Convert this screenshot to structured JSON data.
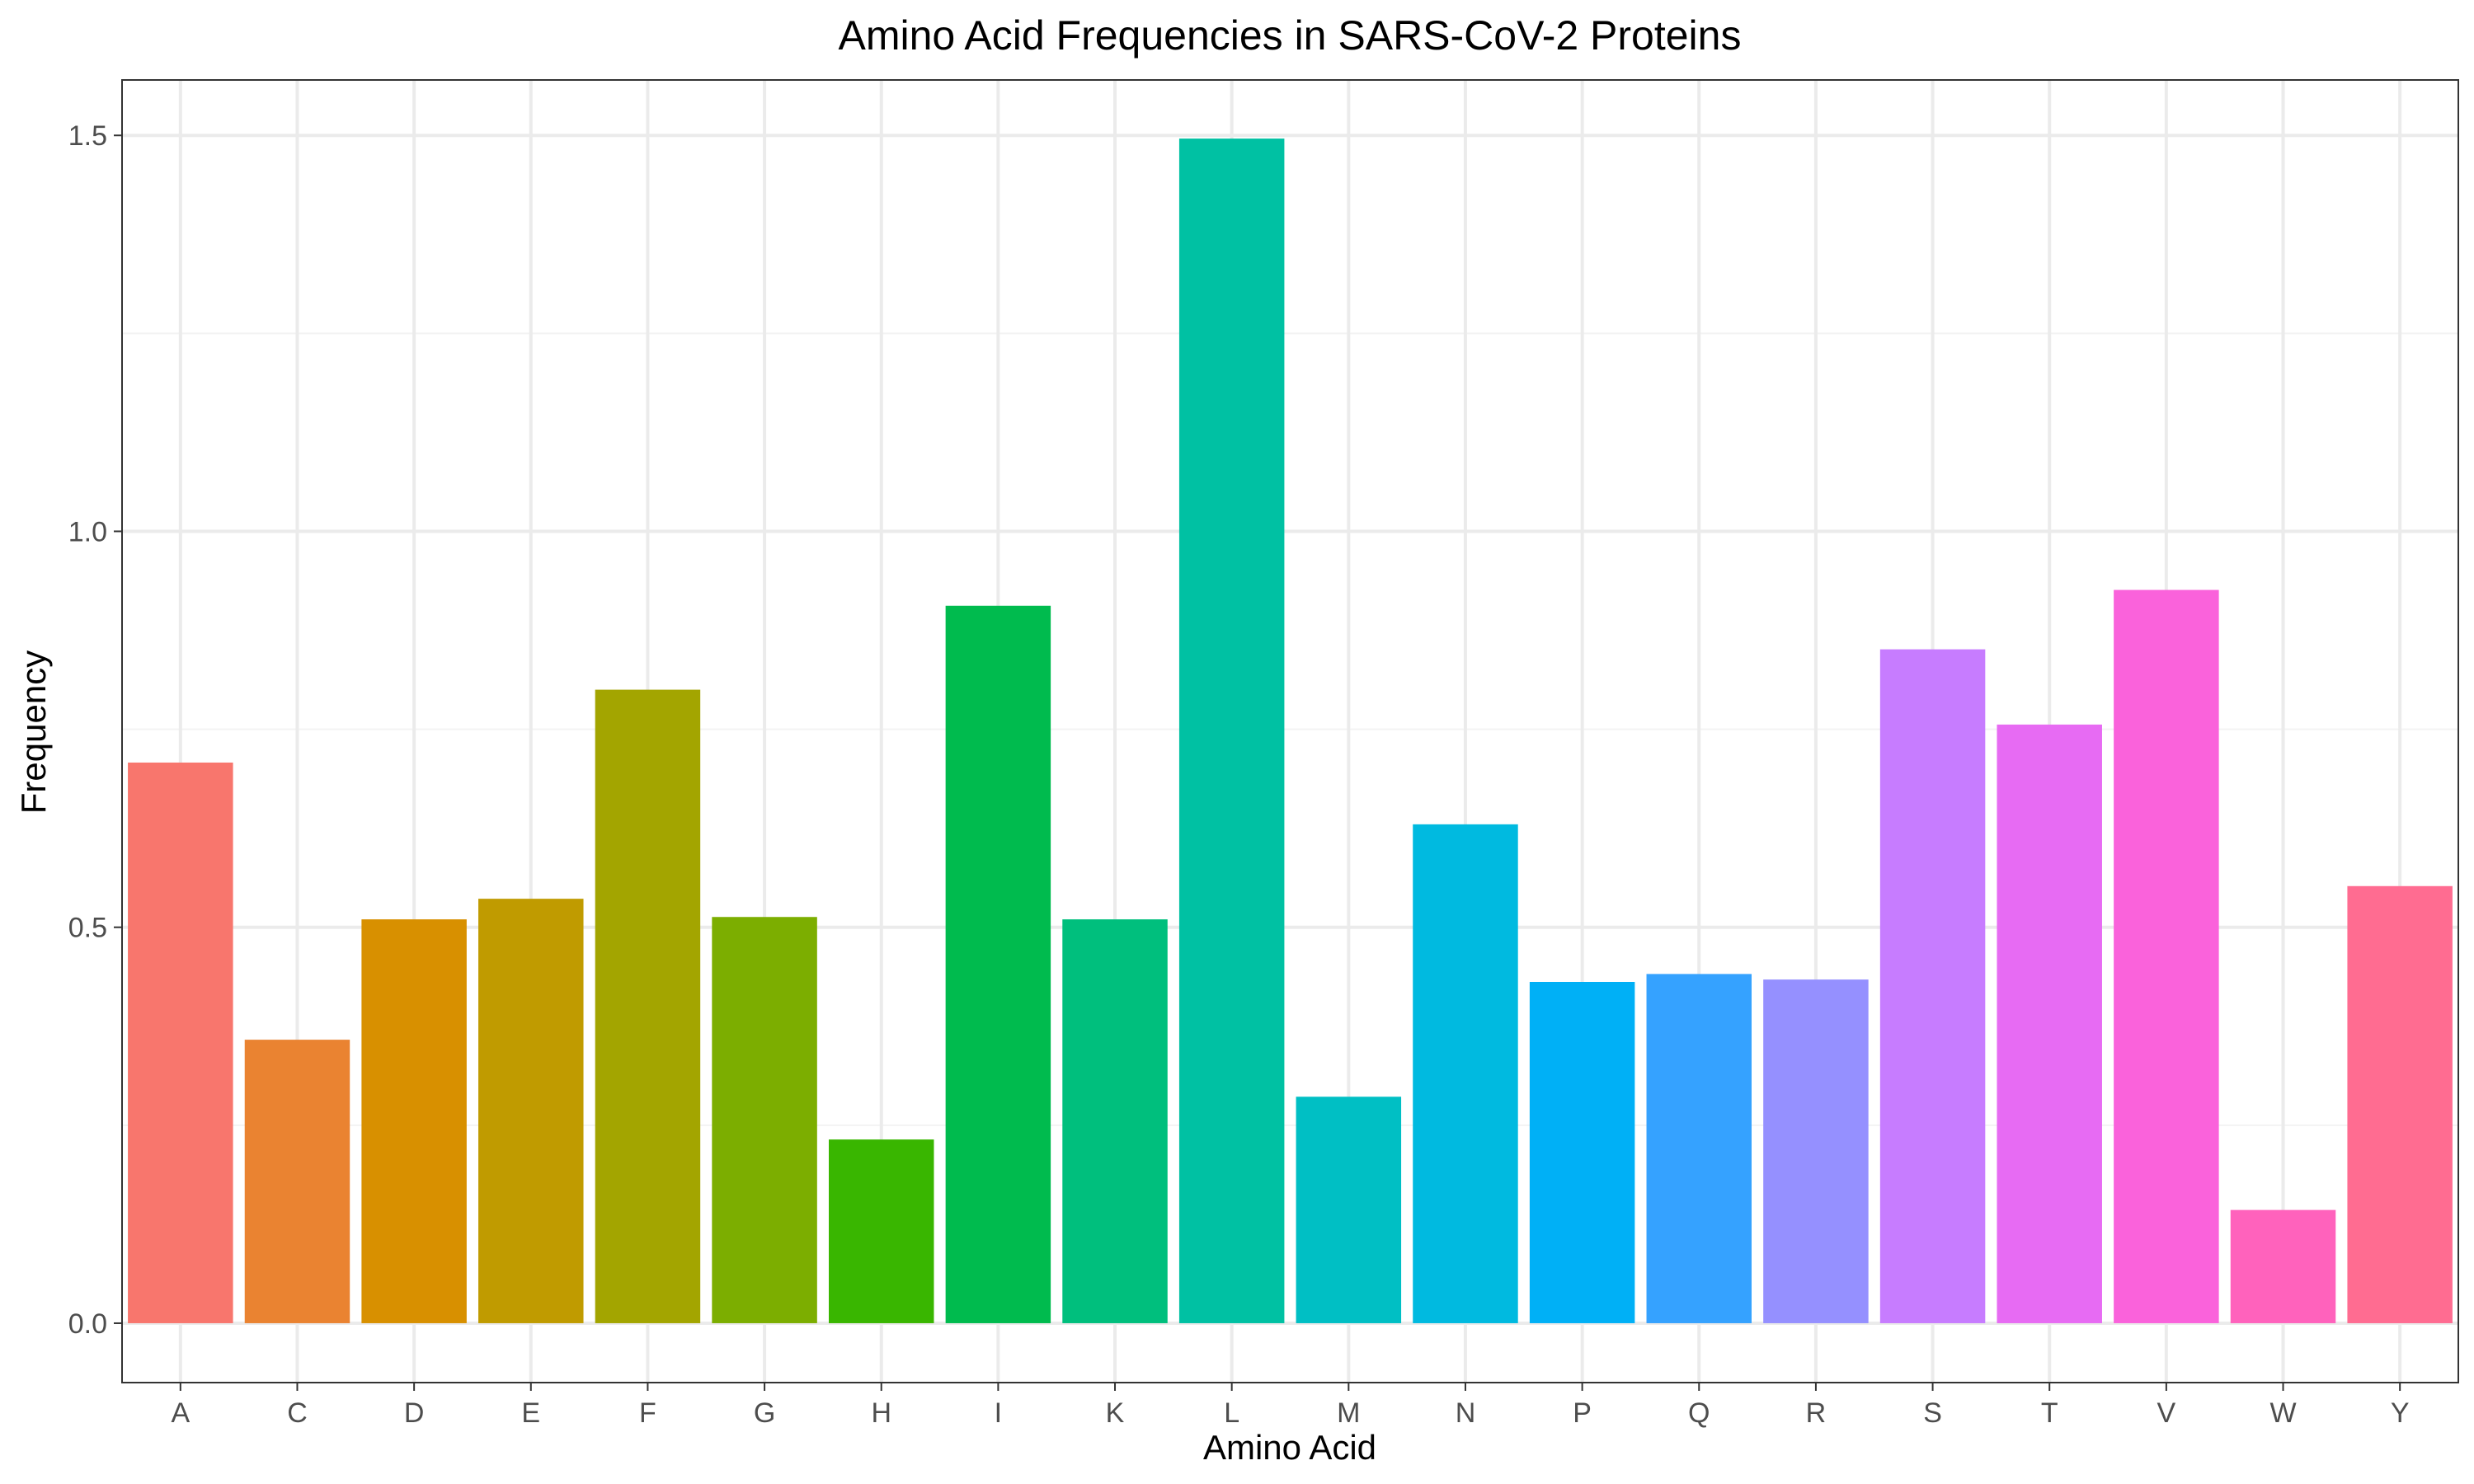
{
  "chart_data": {
    "type": "bar",
    "title": "Amino Acid Frequencies in SARS-CoV-2 Proteins",
    "xlabel": "Amino Acid",
    "ylabel": "Frequency",
    "categories": [
      "A",
      "C",
      "D",
      "E",
      "F",
      "G",
      "H",
      "I",
      "K",
      "L",
      "M",
      "N",
      "P",
      "Q",
      "R",
      "S",
      "T",
      "V",
      "W",
      "Y"
    ],
    "values": [
      0.708,
      0.358,
      0.51,
      0.536,
      0.8,
      0.513,
      0.232,
      0.906,
      0.51,
      1.496,
      0.286,
      0.63,
      0.431,
      0.441,
      0.434,
      0.851,
      0.756,
      0.926,
      0.143,
      0.552
    ],
    "colors": [
      "#F8766D",
      "#EA8331",
      "#D89000",
      "#C09B00",
      "#A3A500",
      "#7CAE00",
      "#39B600",
      "#00BB4E",
      "#00BF7D",
      "#00C1A3",
      "#00BFC4",
      "#00BAE0",
      "#00B0F6",
      "#35A2FF",
      "#9590FF",
      "#C77CFF",
      "#E76BF3",
      "#FA62DB",
      "#FF62BC",
      "#FF6C91"
    ],
    "ylim": [
      -0.075,
      1.57
    ],
    "yticks": [
      0.0,
      0.5,
      1.0,
      1.5
    ],
    "ytick_labels": [
      "0.0",
      "0.5",
      "1.0",
      "1.5"
    ],
    "grid": true,
    "legend": "none"
  }
}
